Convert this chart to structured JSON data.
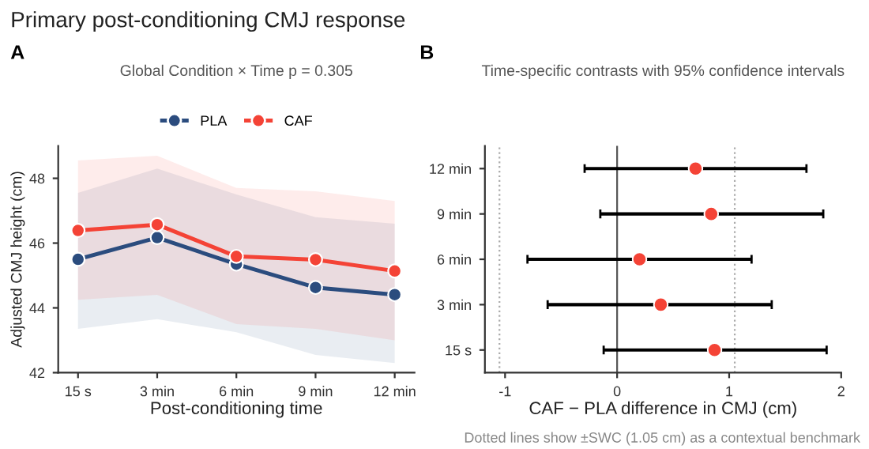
{
  "chart_data": [
    {
      "type": "line",
      "title": "Primary post-conditioning CMJ response",
      "subtitle": "Global Condition × Time p = 0.305",
      "xlabel": "Post-conditioning time",
      "ylabel": "Adjusted CMJ height (cm)",
      "annotations": [
        "A"
      ],
      "categories": [
        "15 s",
        "3 min",
        "6 min",
        "9 min",
        "12 min"
      ],
      "series": [
        {
          "name": "PLA",
          "color": "#2b4c7e",
          "values": [
            45.5,
            46.17,
            45.35,
            44.63,
            44.41
          ],
          "lower": [
            43.35,
            43.65,
            43.25,
            42.55,
            42.3
          ],
          "upper": [
            47.55,
            48.3,
            47.5,
            46.8,
            46.6
          ]
        },
        {
          "name": "CAF",
          "color": "#f44336",
          "values": [
            46.39,
            46.57,
            45.59,
            45.49,
            45.14
          ],
          "lower": [
            44.25,
            44.4,
            43.5,
            43.35,
            43.0
          ],
          "upper": [
            48.55,
            48.7,
            47.7,
            47.6,
            47.3
          ]
        }
      ],
      "ylim": [
        42,
        49
      ],
      "yticks": [
        42,
        44,
        46,
        48
      ],
      "marker": "circle",
      "line_style": "solid",
      "legend": "top",
      "grid": false
    },
    {
      "type": "scatter",
      "orientation": "horizontal",
      "subtitle": "Time-specific contrasts with 95% confidence intervals",
      "xlabel": "CAF − PLA difference in CMJ (cm)",
      "annotations": [
        "B",
        "Dotted lines show ±SWC (1.05 cm) as a contextual benchmark"
      ],
      "categories": [
        "12 min",
        "9 min",
        "6 min",
        "3 min",
        "15 s"
      ],
      "series": [
        {
          "color": "#f44336",
          "values": [
            0.7,
            0.84,
            0.2,
            0.39,
            0.87
          ],
          "errors": [
            [
              -0.29,
              1.69
            ],
            [
              -0.15,
              1.84
            ],
            [
              -0.8,
              1.2
            ],
            [
              -0.62,
              1.38
            ],
            [
              -0.12,
              1.87
            ]
          ]
        }
      ],
      "xlim": [
        -1.18,
        2.0
      ],
      "xticks": [
        -1,
        0,
        1,
        2
      ],
      "marker": "circle",
      "grid": false,
      "ref_lines": [
        {
          "axis": "x",
          "value": 0,
          "color": "#555555",
          "line_style": "solid"
        },
        {
          "axis": "x",
          "value": -1.05,
          "color": "#aaaaaa",
          "line_style": "dotted"
        },
        {
          "axis": "x",
          "value": 1.05,
          "color": "#aaaaaa",
          "line_style": "dotted"
        }
      ]
    }
  ]
}
